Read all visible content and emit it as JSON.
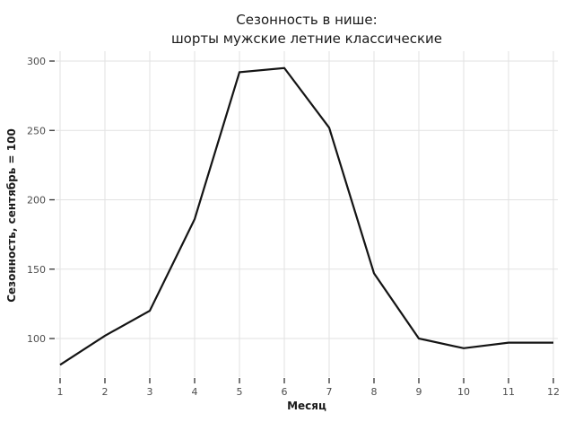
{
  "chart": {
    "title_line1": "Сезонность в нише:",
    "title_line2": "шорты мужские летние классические",
    "xlabel": "Месяц",
    "ylabel": "Сезонность, сентябрь = 100"
  },
  "chart_data": {
    "type": "line",
    "title": "Сезонность в нише:\nшорты мужские летние классические",
    "xlabel": "Месяц",
    "ylabel": "Сезонность, сентябрь = 100",
    "x": [
      1,
      2,
      3,
      4,
      5,
      6,
      7,
      8,
      9,
      10,
      11,
      12
    ],
    "values": [
      81,
      102,
      120,
      186,
      292,
      295,
      252,
      147,
      100,
      93,
      97,
      97
    ],
    "xticks": [
      1,
      2,
      3,
      4,
      5,
      6,
      7,
      8,
      9,
      10,
      11,
      12
    ],
    "yticks": [
      100,
      150,
      200,
      250,
      300
    ],
    "xlim": [
      0.9,
      12.1
    ],
    "ylim": [
      73,
      305
    ],
    "grid": true,
    "legend": false,
    "colors": {
      "line": "#141414",
      "grid": "#e2e2e2",
      "tick_mark": "#333333",
      "tick_label": "#4d4d4d",
      "text": "#1a1a1a",
      "background": "#ffffff"
    }
  }
}
